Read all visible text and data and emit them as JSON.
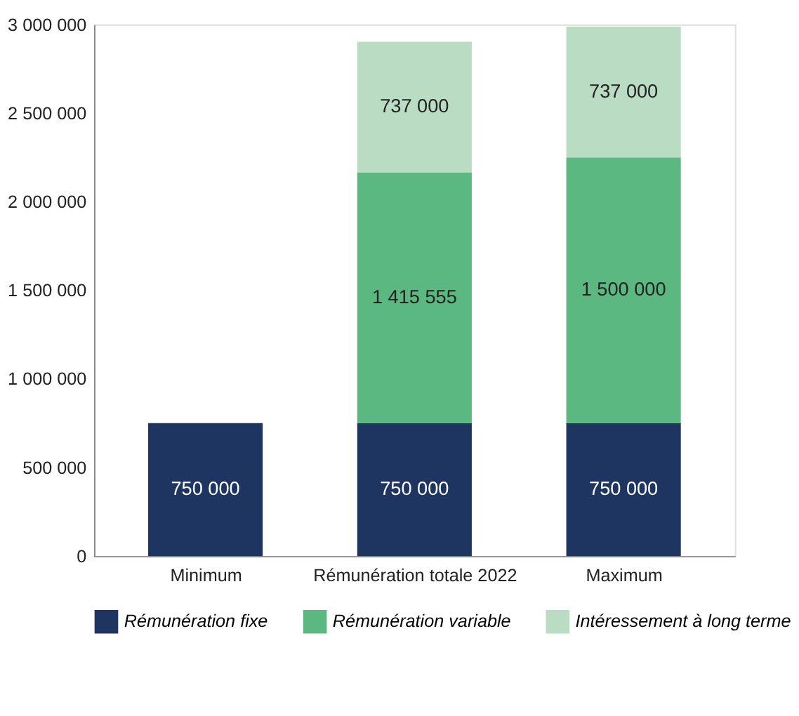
{
  "chart_data": {
    "type": "bar",
    "stacked": true,
    "categories": [
      "Minimum",
      "Rémunération totale 2022",
      "Maximum"
    ],
    "series": [
      {
        "name": "Rémunération fixe",
        "color": "#1e3461",
        "values": [
          750000,
          750000,
          750000
        ],
        "value_labels": [
          "750 000",
          "750 000",
          "750 000"
        ]
      },
      {
        "name": "Rémunération variable",
        "color": "#5cb881",
        "values": [
          null,
          1415555,
          1500000
        ],
        "value_labels": [
          null,
          "1 415 555",
          "1 500 000"
        ]
      },
      {
        "name": "Intéressement à long terme",
        "color": "#b9dcc3",
        "values": [
          null,
          737000,
          737000
        ],
        "value_labels": [
          null,
          "737 000",
          "737 000"
        ]
      }
    ],
    "ylim": [
      0,
      3000000
    ],
    "yticks": [
      {
        "value": 0,
        "label": "0"
      },
      {
        "value": 500000,
        "label": "500 000"
      },
      {
        "value": 1000000,
        "label": "1 000 000"
      },
      {
        "value": 1500000,
        "label": "1 500 000"
      },
      {
        "value": 2000000,
        "label": "2 000 000"
      },
      {
        "value": 2500000,
        "label": "2 500 000"
      },
      {
        "value": 3000000,
        "label": "3 000 000"
      }
    ],
    "grid": false,
    "legend": "bottom"
  }
}
